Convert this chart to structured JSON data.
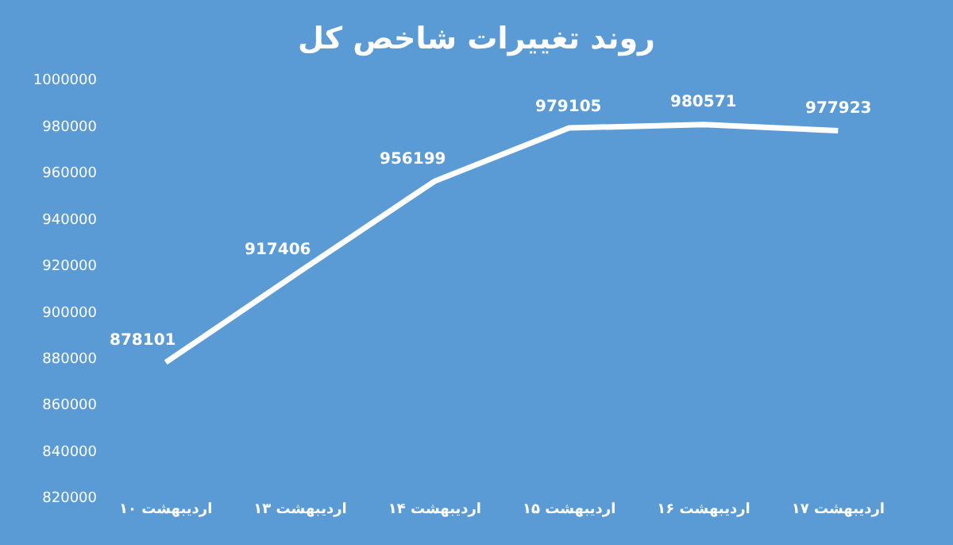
{
  "chart_data": {
    "type": "line",
    "title": "روند تغییرات شاخص کل",
    "categories": [
      "۱۰ اردیبهشت",
      "۱۳ اردیبهشت",
      "۱۴ اردیبهشت",
      "۱۵ اردیبهشت",
      "۱۶ اردیبهشت",
      "۱۷ اردیبهشت"
    ],
    "series": [
      {
        "color": "#ffffff",
        "values": [
          878101,
          917406,
          956199,
          979105,
          980571,
          977923
        ]
      }
    ],
    "ylim": [
      820000,
      1000000
    ],
    "yticks": [
      820000,
      840000,
      860000,
      880000,
      900000,
      920000,
      940000,
      960000,
      980000,
      1000000
    ],
    "data_labels": true,
    "grid": false,
    "legend": false,
    "marker": "none",
    "line_style": "solid"
  }
}
